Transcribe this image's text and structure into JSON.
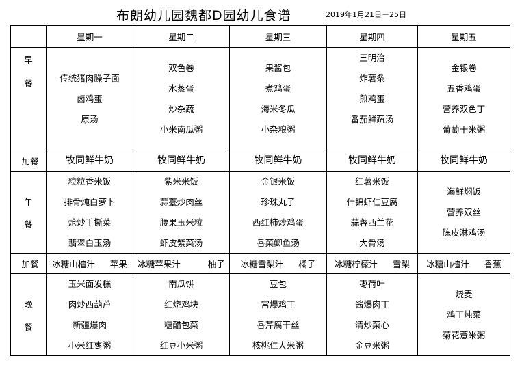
{
  "title": "布朗幼儿园魏都D园幼儿食谱",
  "date_range": "2019年1月21日－25日",
  "days": [
    "星期一",
    "星期二",
    "星期三",
    "星期四",
    "星期五"
  ],
  "meals": [
    {
      "label": [
        "早",
        "餐"
      ],
      "type": "meal",
      "cells": [
        [
          "传统猪肉臊子面",
          "卤鸡蛋",
          "原汤"
        ],
        [
          "双色卷",
          "水蒸蛋",
          "炒杂蔬",
          "小米南瓜粥"
        ],
        [
          "果酱包",
          "煮鸡蛋",
          "海米冬瓜",
          "小杂粮粥"
        ],
        [
          "三明治",
          "炸薯条",
          "煎鸡蛋",
          "番茄鲜蔬汤"
        ],
        [
          "金银卷",
          "五香鸡蛋",
          "营养双色丁",
          "葡萄干米粥"
        ]
      ]
    },
    {
      "label": [
        "加餐"
      ],
      "type": "snack",
      "cells": [
        [
          "牧同鲜牛奶"
        ],
        [
          "牧同鲜牛奶"
        ],
        [
          "牧同鲜牛奶"
        ],
        [
          "牧同鲜牛奶"
        ],
        [
          "牧同鲜牛奶"
        ]
      ]
    },
    {
      "label": [
        "午",
        "餐"
      ],
      "type": "meal",
      "cells": [
        [
          "粒粒香米饭",
          "排骨炖白萝卜",
          "炝炒手撕菜",
          "翡翠白玉汤"
        ],
        [
          "紫米米饭",
          "蒜薹炒肉丝",
          "腰果玉米粒",
          "虾皮紫菜汤"
        ],
        [
          "金银米饭",
          "珍珠丸子",
          "西红柿炒鸡蛋",
          "香菜鲫鱼汤"
        ],
        [
          "红薯米饭",
          "什锦虾仁豆腐",
          "蒜蓉西兰花",
          "大骨汤"
        ],
        [
          "海鲜焖饭",
          "营养双丝",
          "陈皮淋鸡汤"
        ]
      ]
    },
    {
      "label": [
        "加餐"
      ],
      "type": "snack",
      "cells": [
        [
          "冰糖山楂汁",
          "苹果"
        ],
        [
          "冰糖苹果汁",
          "柚子"
        ],
        [
          "冰糖雪梨汁",
          "橘子"
        ],
        [
          "冰糖柠檬汁",
          "雪梨"
        ],
        [
          "冰糖山楂汁",
          "香蕉"
        ]
      ]
    },
    {
      "label": [
        "晚",
        "餐"
      ],
      "type": "meal",
      "cells": [
        [
          "玉米面发糕",
          "肉炒西葫芦",
          "新疆爆肉",
          "小米红枣粥"
        ],
        [
          "南瓜饼",
          "红烧鸡块",
          "糖醋包菜",
          "红豆小米粥"
        ],
        [
          "豆包",
          "宫爆鸡丁",
          "香芹腐干丝",
          "核桃仁大米粥"
        ],
        [
          "枣荷叶",
          "酱爆肉丁",
          "清炒菜心",
          "金豆米粥"
        ],
        [
          "烧麦",
          "鸡丁炖菜",
          "菊花薏米粥"
        ]
      ]
    }
  ]
}
